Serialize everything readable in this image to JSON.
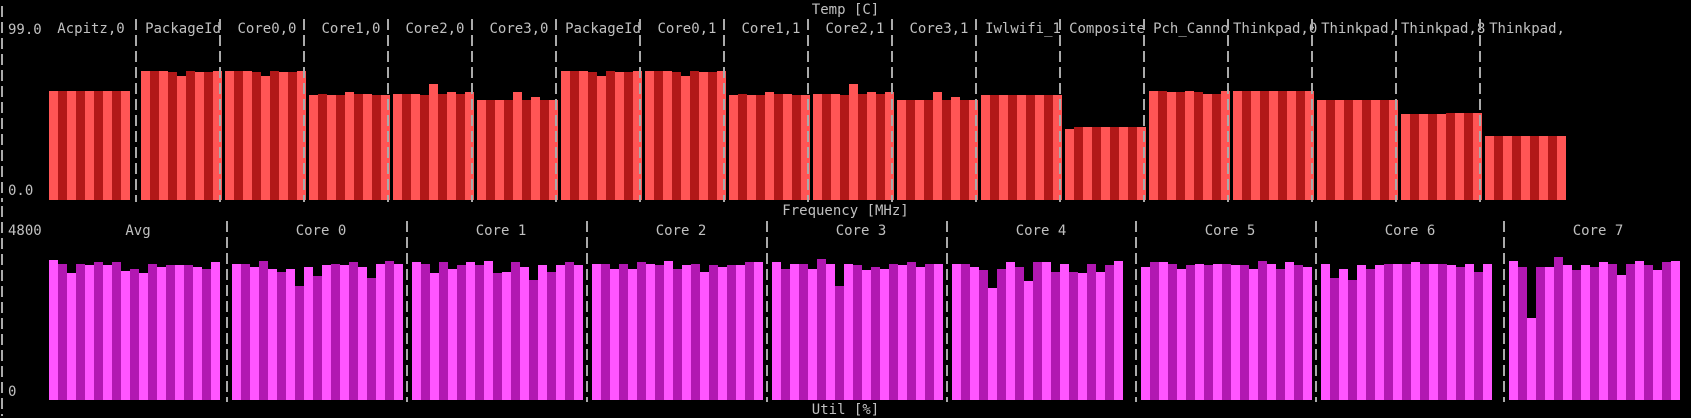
{
  "colors": {
    "temp_light": "#ff5555",
    "temp_dark": "#b21818",
    "freq_light": "#ff55ff",
    "freq_dark": "#b218b2",
    "text": "#c0c0c0",
    "background": "#000000"
  },
  "temp": {
    "title": "Temp [C]",
    "ymax_label": "99.0",
    "ymin_label": "0.0"
  },
  "freq": {
    "title": "Frequency [MHz]",
    "ymax_label": "4800",
    "ymin_label": "0"
  },
  "util": {
    "title": "Util [%]"
  },
  "chart_data": [
    {
      "type": "bar",
      "title": "Temp [C]",
      "ylim": [
        0,
        99
      ],
      "ylabel": "",
      "categories": [
        "Acpitz,0",
        "PackageId",
        "Core0,0",
        "Core1,0",
        "Core2,0",
        "Core3,0",
        "PackageId",
        "Core0,1",
        "Core1,1",
        "Core2,1",
        "Core3,1",
        "Iwlwifi_1",
        "Composite",
        "Pch_Canno",
        "Thinkpad,0",
        "Thinkpad,",
        "Thinkpad,8",
        "Thinkpad,"
      ],
      "series": [
        {
          "name": "Acpitz,0",
          "values": [
            75,
            75,
            75,
            75,
            75,
            75,
            75,
            75,
            75
          ]
        },
        {
          "name": "PackageId",
          "values": [
            89,
            89,
            89,
            88,
            85,
            89,
            88,
            88,
            89
          ]
        },
        {
          "name": "Core0,0",
          "values": [
            89,
            89,
            89,
            88,
            85,
            89,
            88,
            88,
            89
          ]
        },
        {
          "name": "Core1,0",
          "values": [
            72,
            73,
            72,
            72,
            74,
            73,
            73,
            72,
            72
          ]
        },
        {
          "name": "Core2,0",
          "values": [
            73,
            73,
            73,
            72,
            80,
            73,
            74,
            73,
            74
          ]
        },
        {
          "name": "Core3,0",
          "values": [
            69,
            69,
            69,
            69,
            74,
            69,
            71,
            69,
            69
          ]
        },
        {
          "name": "PackageId",
          "values": [
            89,
            89,
            89,
            88,
            85,
            89,
            88,
            88,
            89
          ]
        },
        {
          "name": "Core0,1",
          "values": [
            89,
            89,
            89,
            88,
            85,
            89,
            88,
            88,
            89
          ]
        },
        {
          "name": "Core1,1",
          "values": [
            72,
            73,
            72,
            72,
            74,
            73,
            73,
            72,
            72
          ]
        },
        {
          "name": "Core2,1",
          "values": [
            73,
            73,
            73,
            72,
            80,
            73,
            74,
            73,
            74
          ]
        },
        {
          "name": "Core3,1",
          "values": [
            69,
            69,
            69,
            69,
            74,
            69,
            71,
            69,
            69
          ]
        },
        {
          "name": "Iwlwifi_1",
          "values": [
            72,
            72,
            72,
            72,
            72,
            72,
            72,
            72,
            72
          ]
        },
        {
          "name": "Composite",
          "values": [
            49,
            50,
            50,
            50,
            50,
            50,
            50,
            50,
            50
          ]
        },
        {
          "name": "Pch_Canno",
          "values": [
            75,
            75,
            74,
            74,
            75,
            74,
            73,
            73,
            75
          ]
        },
        {
          "name": "Thinkpad,0",
          "values": [
            75,
            75,
            75,
            75,
            75,
            75,
            75,
            75,
            75
          ]
        },
        {
          "name": "Thinkpad,",
          "values": [
            69,
            69,
            69,
            69,
            69,
            69,
            69,
            69,
            69
          ]
        },
        {
          "name": "Thinkpad,8",
          "values": [
            59,
            59,
            59,
            59,
            59,
            60,
            60,
            60,
            60
          ]
        },
        {
          "name": "Thinkpad,",
          "values": [
            44,
            44,
            44,
            44,
            44,
            44,
            44,
            44,
            44
          ]
        }
      ]
    },
    {
      "type": "bar",
      "title": "Frequency [MHz]",
      "ylim": [
        0,
        4800
      ],
      "ylabel": "",
      "categories": [
        "Avg",
        "Core 0",
        "Core 1",
        "Core 2",
        "Core 3",
        "Core 4",
        "Core 5",
        "Core 6",
        "Core 7"
      ],
      "series": [
        {
          "name": "Avg",
          "values": [
            4420,
            4300,
            4000,
            4300,
            4250,
            4350,
            4250,
            4350,
            4080,
            4150,
            4000,
            4300,
            4200,
            4250,
            4250,
            4250,
            4200,
            4150,
            4350
          ]
        },
        {
          "name": "Core 0",
          "values": [
            4300,
            4300,
            4200,
            4400,
            4150,
            4050,
            4150,
            3600,
            4200,
            3900,
            4250,
            4300,
            4250,
            4350,
            4200,
            3850,
            4300,
            4400,
            4300
          ]
        },
        {
          "name": "Core 1",
          "values": [
            4350,
            4300,
            4000,
            4350,
            4150,
            4250,
            4350,
            4250,
            4400,
            4000,
            4050,
            4350,
            4200,
            3800,
            4250,
            4050,
            4250,
            4350,
            4250
          ]
        },
        {
          "name": "Core 2",
          "values": [
            4300,
            4300,
            4150,
            4300,
            4150,
            4350,
            4300,
            4250,
            4400,
            4150,
            4250,
            4300,
            4050,
            4250,
            4200,
            4250,
            4250,
            4350,
            4350
          ]
        },
        {
          "name": "Core 3",
          "values": [
            4350,
            4150,
            4300,
            4300,
            4150,
            4450,
            4300,
            3600,
            4300,
            4250,
            4100,
            4200,
            4150,
            4300,
            4250,
            4350,
            4200,
            4300,
            4300
          ]
        },
        {
          "name": "Core 4",
          "values": [
            4300,
            4300,
            4200,
            4100,
            3550,
            4150,
            4350,
            4200,
            3750,
            4350,
            4350,
            4050,
            4300,
            4050,
            4000,
            4300,
            4050,
            4250,
            4400
          ]
        },
        {
          "name": "Core 5",
          "values": [
            4200,
            4350,
            4350,
            4300,
            4150,
            4250,
            4300,
            4250,
            4300,
            4300,
            4250,
            4250,
            4150,
            4400,
            4300,
            4150,
            4350,
            4250,
            4200
          ]
        },
        {
          "name": "Core 6",
          "values": [
            4300,
            3850,
            4150,
            3800,
            4250,
            4150,
            4250,
            4300,
            4300,
            4300,
            4350,
            4300,
            4300,
            4300,
            4250,
            4200,
            4300,
            4050,
            4300
          ]
        },
        {
          "name": "Core 7",
          "values": [
            4400,
            4200,
            2600,
            4200,
            4200,
            4500,
            4250,
            4100,
            4250,
            4200,
            4350,
            4300,
            3950,
            4300,
            4400,
            4250,
            4100,
            4350,
            4400
          ]
        }
      ]
    }
  ]
}
